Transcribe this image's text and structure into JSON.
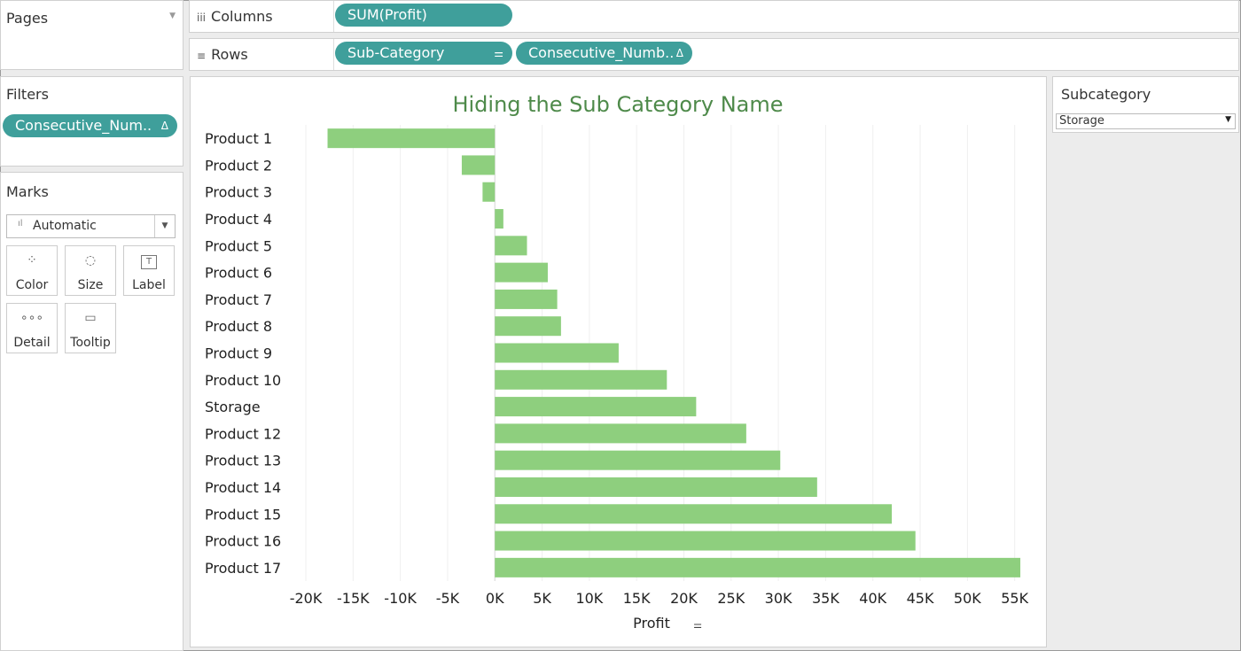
{
  "pages": {
    "title": "Pages"
  },
  "columns_shelf": {
    "label": "Columns",
    "pills": [
      "SUM(Profit)"
    ]
  },
  "rows_shelf": {
    "label": "Rows",
    "pills": [
      {
        "label": "Sub-Category",
        "icon": "sort-icon"
      },
      {
        "label": "Consecutive_Numb..",
        "icon": "delta-icon"
      }
    ]
  },
  "filters": {
    "title": "Filters",
    "pill": "Consecutive_Num..",
    "pill_icon": "delta-icon"
  },
  "marks": {
    "title": "Marks",
    "type": "Automatic",
    "cards": [
      {
        "label": "Color",
        "icon": "color-icon"
      },
      {
        "label": "Size",
        "icon": "size-icon"
      },
      {
        "label": "Label",
        "icon": "label-icon"
      },
      {
        "label": "Detail",
        "icon": "detail-icon"
      },
      {
        "label": "Tooltip",
        "icon": "tooltip-icon"
      }
    ]
  },
  "subcategory": {
    "title": "Subcategory",
    "selected": "Storage"
  },
  "colors": {
    "bar": "#8ecf7e",
    "pill": "#3f9f9b",
    "title": "#4e8a4a"
  },
  "chart_data": {
    "type": "bar",
    "orientation": "horizontal",
    "title": "Hiding the Sub Category Name",
    "xlabel": "Profit",
    "categories": [
      "Product 1",
      "Product 2",
      "Product 3",
      "Product 4",
      "Product 5",
      "Product 6",
      "Product 7",
      "Product 8",
      "Product 9",
      "Product 10",
      "Storage",
      "Product 12",
      "Product 13",
      "Product 14",
      "Product 15",
      "Product 16",
      "Product 17"
    ],
    "values": [
      -17700,
      -3500,
      -1300,
      900,
      3400,
      5600,
      6600,
      7000,
      13100,
      18200,
      21300,
      26600,
      30200,
      34100,
      42000,
      44500,
      55600
    ],
    "xlim": [
      -20000,
      57000
    ],
    "ticks": [
      -20000,
      -15000,
      -10000,
      -5000,
      0,
      5000,
      10000,
      15000,
      20000,
      25000,
      30000,
      35000,
      40000,
      45000,
      50000,
      55000
    ],
    "tick_labels": [
      "-20K",
      "-15K",
      "-10K",
      "-5K",
      "0K",
      "5K",
      "10K",
      "15K",
      "20K",
      "25K",
      "30K",
      "35K",
      "40K",
      "45K",
      "50K",
      "55K"
    ],
    "grid": "vertical"
  }
}
